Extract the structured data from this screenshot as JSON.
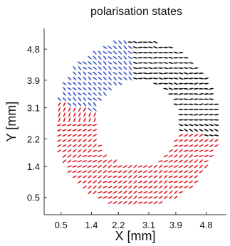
{
  "chart_data": {
    "type": "scatter",
    "title": "polarisation states",
    "xlabel": "X [mm]",
    "ylabel": "Y [mm]",
    "xlim": [
      0.0,
      5.4
    ],
    "ylim": [
      0.0,
      5.4
    ],
    "xticks": [
      0.5,
      1.4,
      2.2,
      3.1,
      3.9,
      4.8
    ],
    "yticks": [
      0.5,
      1.4,
      2.2,
      3.1,
      3.9,
      4.8
    ],
    "xtick_labels": [
      "0.5",
      "1.4",
      "2.2",
      "3.1",
      "3.9",
      "4.8"
    ],
    "ytick_labels": [
      "0.5",
      "1.4",
      "2.2",
      "3.1",
      "3.9",
      "4.8"
    ],
    "grid": false,
    "annulus": {
      "center": [
        2.75,
        2.65
      ],
      "inner_radius": 1.25,
      "outer_radius": 2.45,
      "marker_spacing": 0.15
    },
    "series": [
      {
        "color": "#e0202a",
        "description_values": "lower and left region"
      },
      {
        "color": "#3a54c8",
        "description_values": "upper-left region"
      },
      {
        "color": "#111111",
        "description_values": "right and top-outer region"
      }
    ]
  }
}
